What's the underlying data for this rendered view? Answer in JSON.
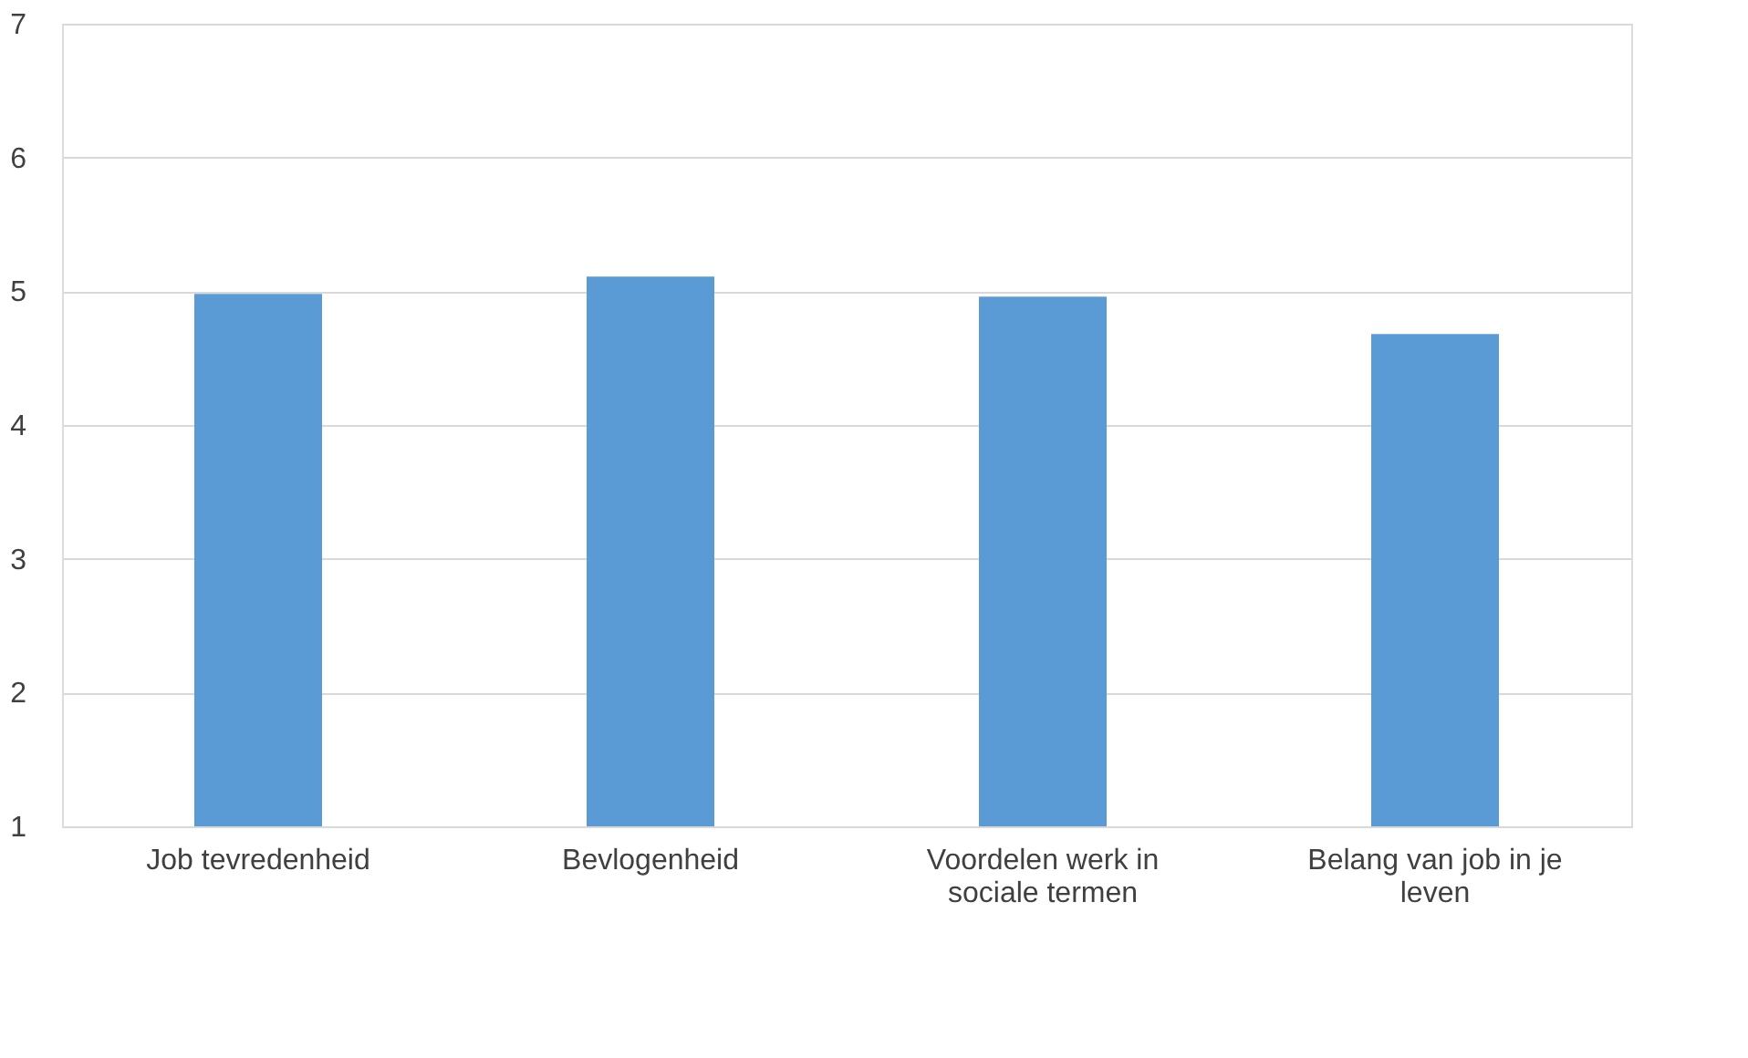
{
  "chart_data": {
    "type": "bar",
    "categories": [
      "Job tevredenheid",
      "Bevlogenheid",
      "Voordelen werk in sociale termen",
      "Belang van job in je leven"
    ],
    "values": [
      4.98,
      5.11,
      4.96,
      4.68
    ],
    "color": "#5b9bd5",
    "ylim": [
      1,
      7
    ],
    "yticks": [
      1,
      2,
      3,
      4,
      5,
      6,
      7
    ],
    "grid": "y"
  }
}
